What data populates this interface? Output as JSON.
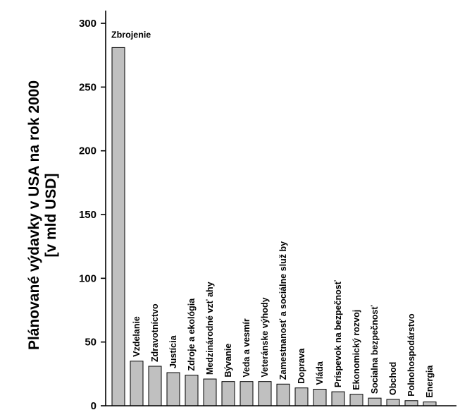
{
  "chart_data": {
    "type": "bar",
    "ylabel": "Plánované výdavky v USA na rok 2000",
    "ylabel_line2": "[v mld USD]",
    "ylim": [
      0,
      310
    ],
    "yticks": [
      0,
      50,
      100,
      150,
      200,
      250,
      300
    ],
    "grid": false,
    "bar_color": "#c0c0c0",
    "categories": [
      "Zbrojenie",
      "Vzdelanie",
      "Zdravotníctvo",
      "Justícia",
      "Zdroje a ekológia",
      "Medzinárodné vzť ahy",
      "Bývanie",
      "Veda a vesmír",
      "Veteránske výhody",
      "Zamestnanosť a sociálne služ by",
      "Doprava",
      "Vláda",
      "Príspevok na bezpečnosť",
      "Ekonomický rozvoj",
      "Socialna bezpečnosť",
      "Obchod",
      "Polnohospodárstvo",
      "Energia"
    ],
    "values": [
      281,
      35,
      31,
      26,
      24,
      21,
      19,
      19,
      19,
      17,
      14,
      13,
      11,
      9,
      6,
      5,
      4,
      3
    ]
  }
}
